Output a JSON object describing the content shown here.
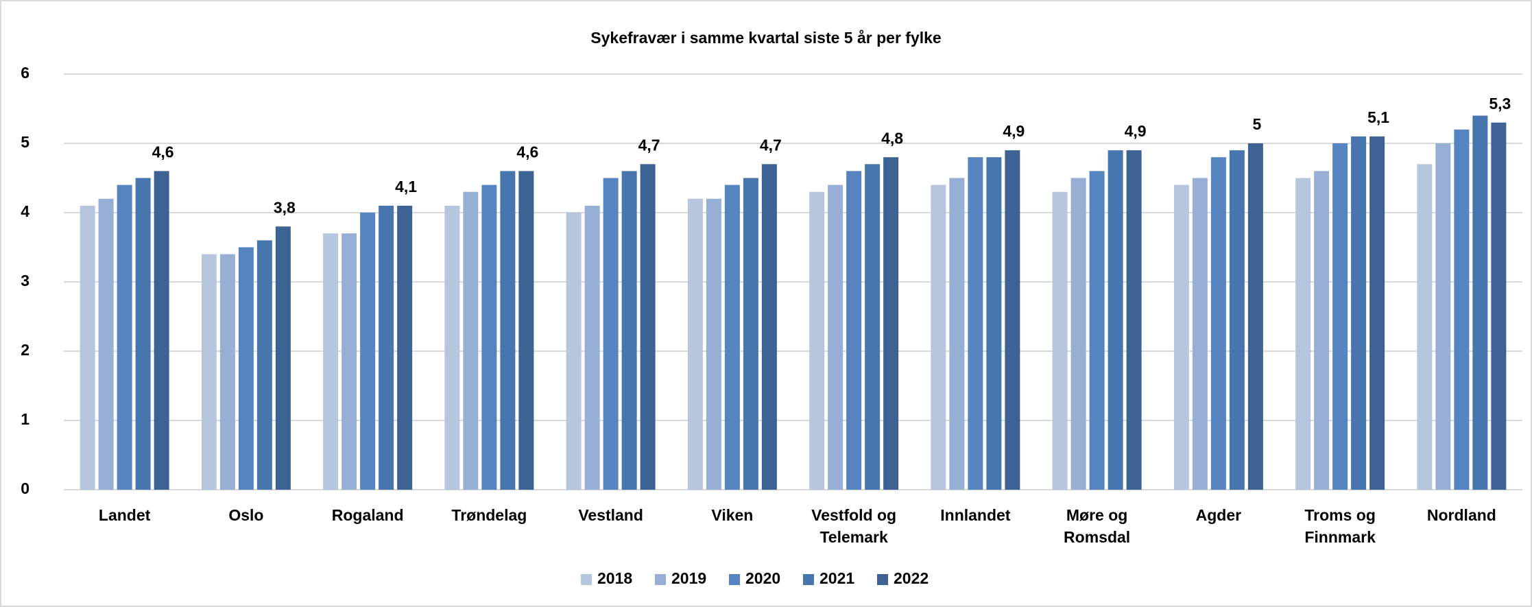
{
  "chart_data": {
    "type": "bar",
    "title": "Sykefravær i samme kvartal siste 5 år per fylke",
    "categories": [
      "Landet",
      "Oslo",
      "Rogaland",
      "Trøndelag",
      "Vestland",
      "Viken",
      "Vestfold og Telemark",
      "Innlandet",
      "Møre og Romsdal",
      "Agder",
      "Troms og Finnmark",
      "Nordland"
    ],
    "series": [
      {
        "name": "2018",
        "color": "#b7c6df",
        "values": [
          4.1,
          3.4,
          3.7,
          4.1,
          4.0,
          4.2,
          4.3,
          4.4,
          4.3,
          4.4,
          4.5,
          4.7
        ]
      },
      {
        "name": "2019",
        "color": "#97afd5",
        "values": [
          4.2,
          3.4,
          3.7,
          4.3,
          4.1,
          4.2,
          4.4,
          4.5,
          4.5,
          4.5,
          4.6,
          5.0
        ]
      },
      {
        "name": "2020",
        "color": "#5584c1",
        "values": [
          4.4,
          3.5,
          4.0,
          4.4,
          4.5,
          4.4,
          4.6,
          4.8,
          4.6,
          4.8,
          5.0,
          5.2
        ]
      },
      {
        "name": "2021",
        "color": "#4676ad",
        "values": [
          4.5,
          3.6,
          4.1,
          4.6,
          4.6,
          4.5,
          4.7,
          4.8,
          4.9,
          4.9,
          5.1,
          5.4
        ]
      },
      {
        "name": "2022",
        "color": "#3d6394",
        "values": [
          4.6,
          3.8,
          4.1,
          4.6,
          4.7,
          4.7,
          4.8,
          4.9,
          4.9,
          5.0,
          5.1,
          5.3
        ],
        "value_labels": [
          "4,6",
          "3,8",
          "4,1",
          "4,6",
          "4,7",
          "4,7",
          "4,8",
          "4,9",
          "4,9",
          "5",
          "5,1",
          "5,3"
        ]
      }
    ],
    "ylim": [
      0,
      6
    ],
    "yticks": [
      0,
      1,
      2,
      3,
      4,
      5,
      6
    ],
    "grid": true,
    "legend": "bottom"
  }
}
